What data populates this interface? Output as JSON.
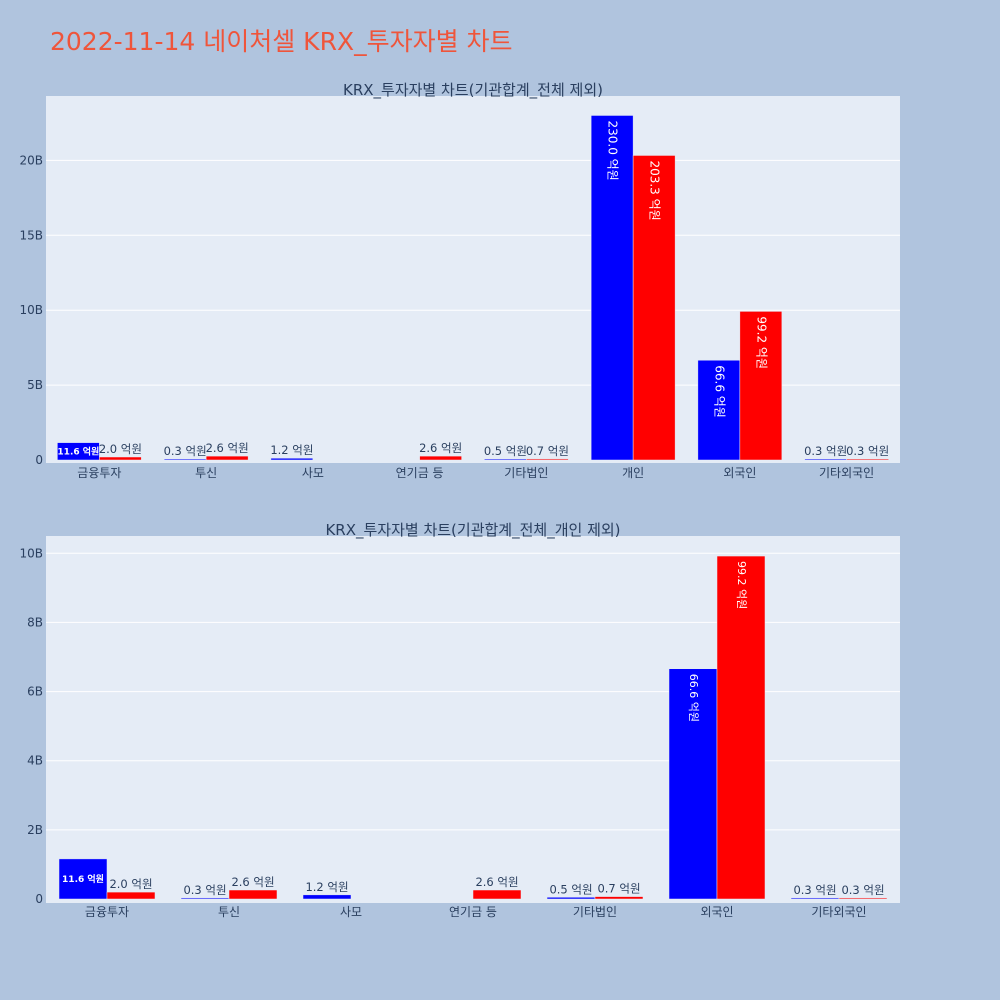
{
  "page_title": "2022-11-14 네이처셀 KRX_투자자별 차트",
  "colors": {
    "background": "#b0c4de",
    "plot_bg": "#e5ecf6",
    "title": "#ef553b",
    "buy": "#0000ff",
    "sell": "#ff0000",
    "text": "#2a3f5f"
  },
  "chart_data": [
    {
      "type": "bar",
      "title": "KRX_투자자별 차트(기관합계_전체 제외)",
      "categories": [
        "금융투자",
        "투신",
        "사모",
        "연기금 등",
        "기타법인",
        "개인",
        "외국인",
        "기타외국인"
      ],
      "ylim": [
        0,
        24.3
      ],
      "yticks": [
        0,
        5,
        10,
        15,
        20
      ],
      "ytick_labels": [
        "0",
        "5B",
        "10B",
        "15B",
        "20B"
      ],
      "grid": true,
      "series": [
        {
          "color": "#0000ff",
          "values": [
            1.16,
            0.03,
            0.12,
            0,
            0.05,
            23.0,
            6.66,
            0.03
          ],
          "labels": [
            "11.6 억원",
            "0.3 억원",
            "1.2 억원",
            "",
            "0.5 억원",
            "230.0 억원",
            "66.6 억원",
            "0.3 억원"
          ]
        },
        {
          "color": "#ff0000",
          "values": [
            0.2,
            0.26,
            0,
            0.26,
            0.07,
            20.33,
            9.92,
            0.03
          ],
          "labels": [
            "2.0 억원",
            "2.6 억원",
            "",
            "2.6 억원",
            "0.7 억원",
            "203.3 억원",
            "99.2 억원",
            "0.3 억원"
          ]
        }
      ]
    },
    {
      "type": "bar",
      "title": "KRX_투자자별 차트(기관합계_전체_개인 제외)",
      "categories": [
        "금융투자",
        "투신",
        "사모",
        "연기금 등",
        "기타법인",
        "외국인",
        "기타외국인"
      ],
      "ylim": [
        0,
        10.5
      ],
      "yticks": [
        0,
        2,
        4,
        6,
        8,
        10
      ],
      "ytick_labels": [
        "0",
        "2B",
        "4B",
        "6B",
        "8B",
        "10B"
      ],
      "grid": true,
      "series": [
        {
          "color": "#0000ff",
          "values": [
            1.16,
            0.03,
            0.12,
            0,
            0.05,
            6.66,
            0.03
          ],
          "labels": [
            "11.6 억원",
            "0.3 억원",
            "1.2 억원",
            "",
            "0.5 억원",
            "66.6 억원",
            "0.3 억원"
          ]
        },
        {
          "color": "#ff0000",
          "values": [
            0.2,
            0.26,
            0,
            0.26,
            0.07,
            9.92,
            0.03
          ],
          "labels": [
            "2.0 억원",
            "2.6 억원",
            "",
            "2.6 억원",
            "0.7 억원",
            "99.2 억원",
            "0.3 억원"
          ]
        }
      ]
    }
  ]
}
